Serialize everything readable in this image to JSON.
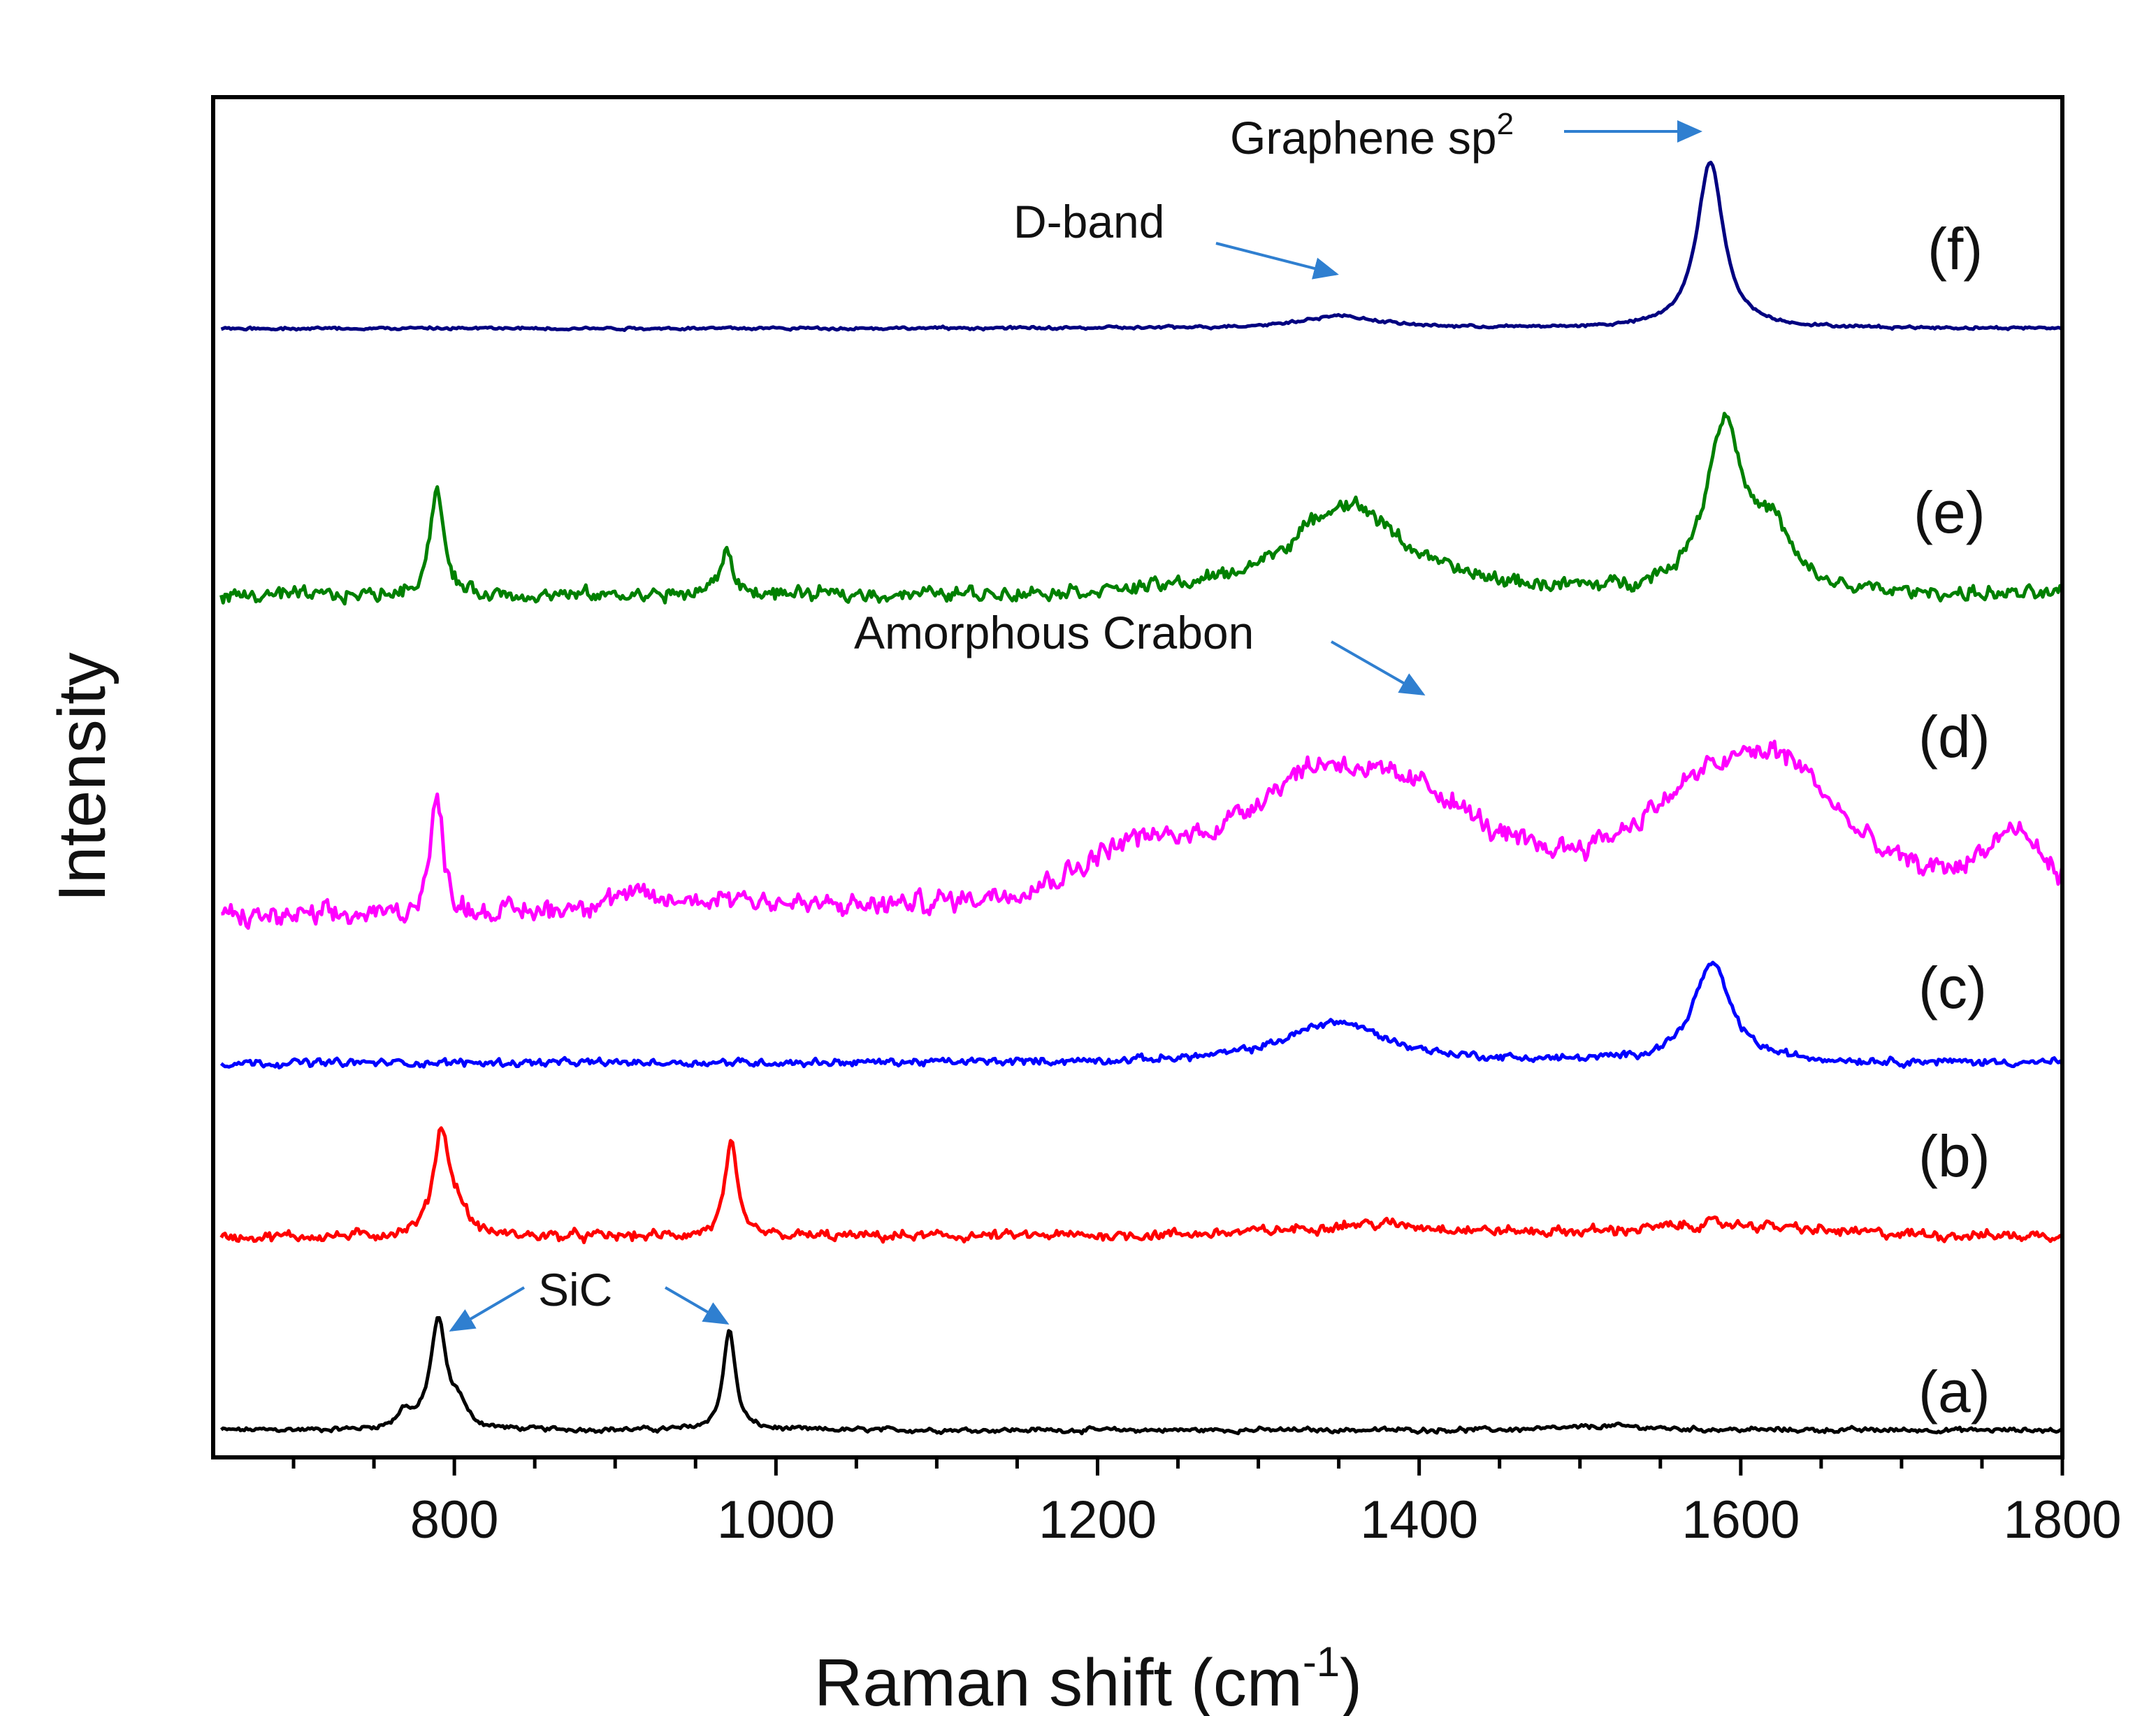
{
  "chart_data": {
    "type": "line",
    "title": "",
    "xlabel": "Raman shift (cm",
    "xlabel_sup": "-1",
    "xlabel_close": ")",
    "ylabel": "Intensity",
    "xlim": [
      650,
      1800
    ],
    "ylim": [
      0,
      100
    ],
    "x_ticks": [
      800,
      1000,
      1200,
      1400,
      1600,
      1800
    ],
    "x_minor_step": 50,
    "grid": false,
    "y_tick_labels": false,
    "series": [
      {
        "name": "(a)",
        "color": "#000000",
        "baseline": 2.0,
        "noise": 0.25,
        "peaks": [
          {
            "x": 769,
            "h": 1.2,
            "w": 5
          },
          {
            "x": 790,
            "h": 8.0,
            "w": 6
          },
          {
            "x": 803,
            "h": 1.5,
            "w": 5
          },
          {
            "x": 971,
            "h": 7.4,
            "w": 4.5
          },
          {
            "x": 1520,
            "h": 0.3,
            "w": 30
          }
        ]
      },
      {
        "name": "(b)",
        "color": "#ff0000",
        "baseline": 16.2,
        "noise": 0.55,
        "peaks": [
          {
            "x": 792,
            "h": 7.8,
            "w": 6
          },
          {
            "x": 803,
            "h": 1.5,
            "w": 6
          },
          {
            "x": 972,
            "h": 6.8,
            "w": 4.5
          },
          {
            "x": 1370,
            "h": 0.9,
            "w": 60
          },
          {
            "x": 1590,
            "h": 0.9,
            "w": 60
          }
        ]
      },
      {
        "name": "(c)",
        "color": "#0000ff",
        "baseline": 29.0,
        "noise": 0.4,
        "peaks": [
          {
            "x": 1348,
            "h": 3.0,
            "w": 38
          },
          {
            "x": 1582,
            "h": 7.2,
            "w": 14
          }
        ]
      },
      {
        "name": "(d)",
        "color": "#ff00ff",
        "baseline": 39.5,
        "noise": 1.2,
        "peaks": [
          {
            "x": 789,
            "h": 8.4,
            "w": 5
          },
          {
            "x": 905,
            "h": 1.2,
            "w": 30
          },
          {
            "x": 975,
            "h": 1.0,
            "w": 30
          },
          {
            "x": 1220,
            "h": 3.0,
            "w": 40
          },
          {
            "x": 1340,
            "h": 9.8,
            "w": 70
          },
          {
            "x": 1410,
            "h": 3.5,
            "w": 40
          },
          {
            "x": 1580,
            "h": 7.0,
            "w": 60
          },
          {
            "x": 1630,
            "h": 7.0,
            "w": 45
          },
          {
            "x": 1770,
            "h": 5.0,
            "w": 25
          }
        ]
      },
      {
        "name": "(e)",
        "color": "#008000",
        "baseline": 63.3,
        "noise": 0.75,
        "peaks": [
          {
            "x": 789,
            "h": 8.0,
            "w": 5
          },
          {
            "x": 969,
            "h": 3.2,
            "w": 5
          },
          {
            "x": 1355,
            "h": 6.8,
            "w": 42
          },
          {
            "x": 1590,
            "h": 12.5,
            "w": 14
          },
          {
            "x": 1620,
            "h": 4.0,
            "w": 13
          }
        ]
      },
      {
        "name": "(f)",
        "color": "#000080",
        "baseline": 83.0,
        "noise": 0.15,
        "peaks": [
          {
            "x": 1350,
            "h": 0.9,
            "w": 30
          },
          {
            "x": 1581,
            "h": 12.2,
            "w": 10
          }
        ]
      }
    ],
    "annotations": [
      {
        "text": "Graphene sp",
        "sup": "2",
        "x": 1581
      },
      {
        "text": "D-band",
        "x": 1350
      },
      {
        "text": "Amorphous Crabon",
        "x": 1410
      },
      {
        "text": "SiC",
        "x": [
          790,
          971
        ]
      }
    ]
  },
  "colors": {
    "axis": "#000000",
    "arrow": "#2f7fd0"
  }
}
